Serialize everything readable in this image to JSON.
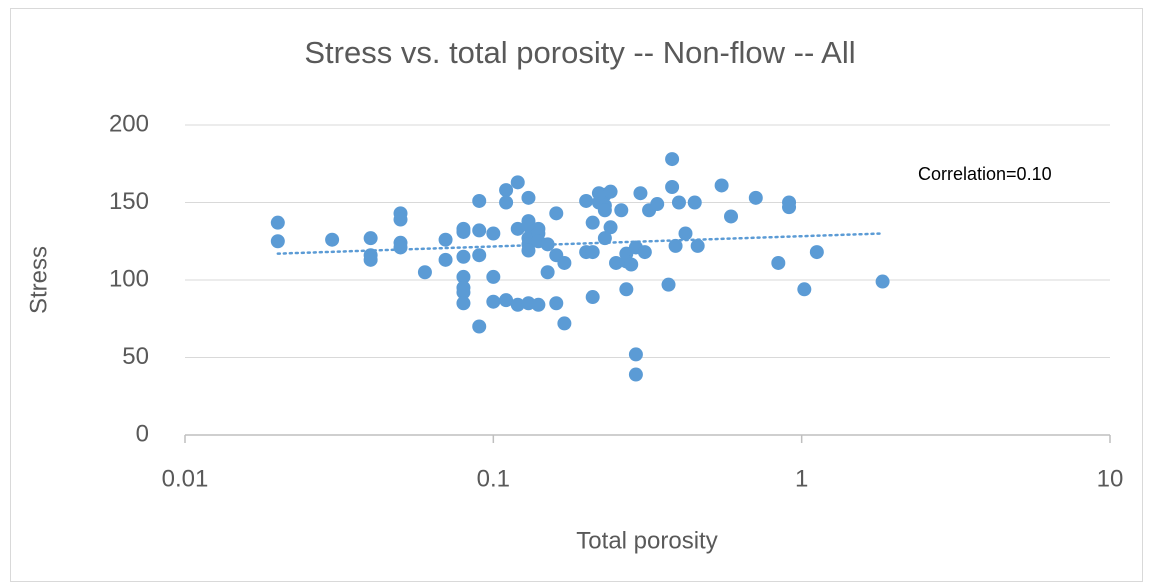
{
  "chart_data": {
    "type": "scatter",
    "title": "Stress vs. total porosity -- Non-flow -- All",
    "x_label": "Total porosity",
    "y_label": "Stress",
    "annotation": "Correlation=0.10",
    "x_scale": "log",
    "xlim": [
      0.01,
      10
    ],
    "xticks": [
      0.01,
      0.1,
      1,
      10
    ],
    "ylim": [
      0,
      200
    ],
    "yticks": [
      0,
      50,
      100,
      150,
      200
    ],
    "grid": true,
    "color": "#5b9bd5",
    "x": [
      0.02,
      0.02,
      0.03,
      0.04,
      0.04,
      0.04,
      0.05,
      0.05,
      0.05,
      0.05,
      0.06,
      0.07,
      0.07,
      0.08,
      0.08,
      0.08,
      0.08,
      0.08,
      0.08,
      0.08,
      0.09,
      0.09,
      0.09,
      0.09,
      0.1,
      0.1,
      0.1,
      0.11,
      0.11,
      0.11,
      0.12,
      0.12,
      0.12,
      0.13,
      0.13,
      0.13,
      0.13,
      0.13,
      0.13,
      0.13,
      0.14,
      0.14,
      0.14,
      0.14,
      0.15,
      0.15,
      0.16,
      0.16,
      0.16,
      0.17,
      0.17,
      0.2,
      0.2,
      0.21,
      0.21,
      0.21,
      0.22,
      0.22,
      0.23,
      0.23,
      0.23,
      0.23,
      0.24,
      0.24,
      0.25,
      0.26,
      0.27,
      0.27,
      0.27,
      0.28,
      0.29,
      0.29,
      0.29,
      0.3,
      0.31,
      0.32,
      0.34,
      0.37,
      0.38,
      0.38,
      0.39,
      0.4,
      0.42,
      0.45,
      0.46,
      0.55,
      0.59,
      0.71,
      0.84,
      0.91,
      0.91,
      1.02,
      1.12,
      1.83
    ],
    "values": [
      137,
      125,
      126,
      127,
      116,
      113,
      143,
      139,
      124,
      121,
      105,
      126,
      113,
      133,
      131,
      115,
      102,
      95,
      92,
      85,
      151,
      132,
      116,
      70,
      130,
      102,
      86,
      158,
      150,
      87,
      163,
      133,
      84,
      153,
      138,
      135,
      127,
      123,
      119,
      85,
      133,
      130,
      125,
      84,
      123,
      105,
      143,
      116,
      85,
      111,
      72,
      151,
      118,
      137,
      118,
      89,
      156,
      150,
      155,
      148,
      145,
      127,
      157,
      134,
      111,
      145,
      117,
      112,
      94,
      110,
      121,
      52,
      39,
      156,
      118,
      145,
      149,
      97,
      178,
      160,
      122,
      150,
      130,
      150,
      122,
      161,
      141,
      153,
      111,
      150,
      147,
      94,
      118,
      99
    ],
    "trendline": {
      "x": [
        0.02,
        1.83
      ],
      "values": [
        117,
        130
      ]
    }
  }
}
